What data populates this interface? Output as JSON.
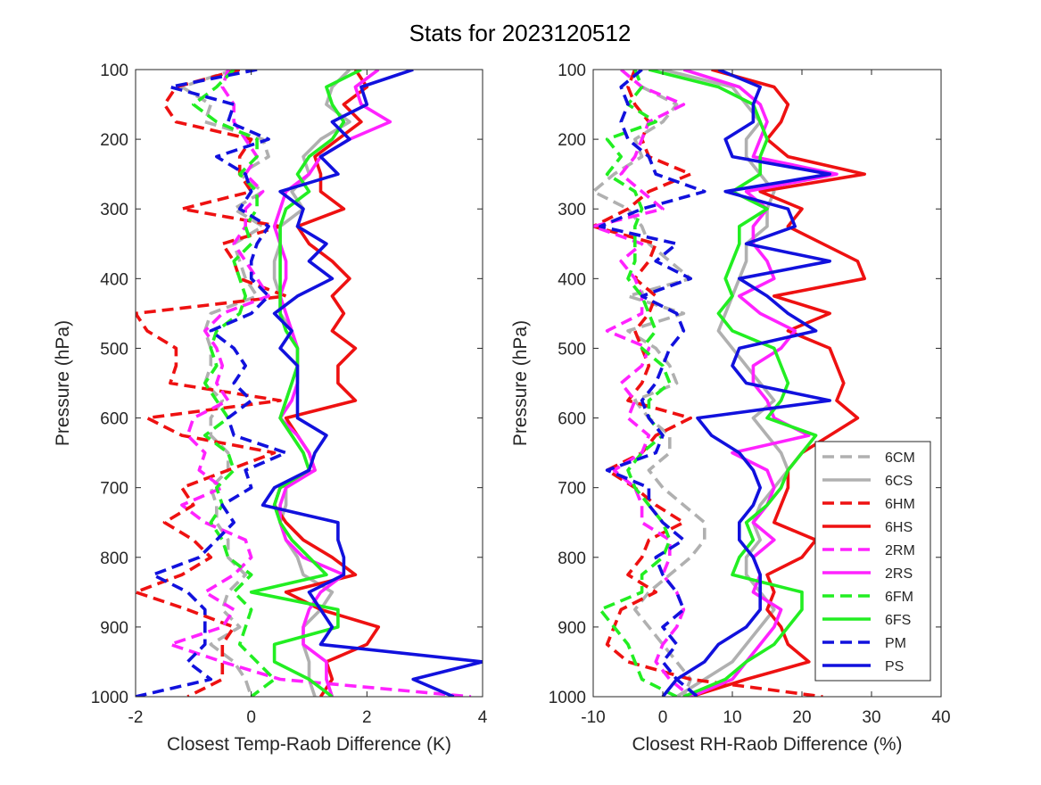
{
  "title": "Stats for 2023120512",
  "colors": {
    "6C": "#b0b0b0",
    "6H": "#ee1111",
    "2R": "#ff22ff",
    "6F": "#22ee22",
    "P": "#1111dd"
  },
  "legend": {
    "placement": "lower-right of right panel",
    "entries": [
      {
        "label": "6CM",
        "color_key": "6C",
        "style": "dashed"
      },
      {
        "label": "6CS",
        "color_key": "6C",
        "style": "solid"
      },
      {
        "label": "6HM",
        "color_key": "6H",
        "style": "dashed"
      },
      {
        "label": "6HS",
        "color_key": "6H",
        "style": "solid"
      },
      {
        "label": "2RM",
        "color_key": "2R",
        "style": "dashed"
      },
      {
        "label": "2RS",
        "color_key": "2R",
        "style": "solid"
      },
      {
        "label": "6FM",
        "color_key": "6F",
        "style": "dashed"
      },
      {
        "label": "6FS",
        "color_key": "6F",
        "style": "solid"
      },
      {
        "label": "PM",
        "color_key": "P",
        "style": "dashed"
      },
      {
        "label": "PS",
        "color_key": "P",
        "style": "solid"
      }
    ]
  },
  "chart_data": [
    {
      "type": "line",
      "xlabel": "Closest Temp-Raob Difference (K)",
      "ylabel": "Pressure (hPa)",
      "xlim": [
        -2,
        4
      ],
      "ylim": [
        1000,
        100
      ],
      "y_reversed": true,
      "xticks": [
        "-2",
        "0",
        "2",
        "4"
      ],
      "xtick_values": [
        -2,
        0,
        2,
        4
      ],
      "yticks": [
        "100",
        "200",
        "300",
        "400",
        "500",
        "600",
        "700",
        "800",
        "900",
        "1000"
      ],
      "ytick_values": [
        100,
        200,
        300,
        400,
        500,
        600,
        700,
        800,
        900,
        1000
      ],
      "grid": false,
      "pressure_levels": [
        100,
        125,
        150,
        175,
        200,
        225,
        250,
        275,
        300,
        325,
        350,
        375,
        400,
        425,
        450,
        475,
        500,
        525,
        550,
        575,
        600,
        625,
        650,
        675,
        700,
        725,
        750,
        775,
        800,
        825,
        850,
        875,
        900,
        925,
        950,
        975,
        1000
      ],
      "series": [
        {
          "name": "6CM",
          "values": [
            -0.3,
            -1.2,
            -0.7,
            -0.8,
            0.2,
            0.3,
            -0.2,
            0.2,
            -0.3,
            0.2,
            -0.3,
            -0.2,
            -0.1,
            0.1,
            -0.7,
            -0.8,
            -0.7,
            -0.7,
            -0.8,
            -0.5,
            -0.7,
            -0.7,
            -0.4,
            -0.4,
            -0.7,
            -0.6,
            -0.6,
            -0.4,
            -0.4,
            -0.1,
            -0.4,
            -0.5,
            -0.2,
            -0.7,
            -0.3,
            -0.1,
            0.0
          ]
        },
        {
          "name": "6CS",
          "values": [
            1.7,
            1.4,
            1.3,
            1.7,
            1.2,
            0.9,
            1.0,
            0.7,
            0.9,
            0.5,
            0.5,
            0.4,
            0.4,
            0.5,
            0.5,
            0.7,
            0.8,
            0.8,
            0.7,
            0.6,
            0.5,
            0.7,
            0.9,
            1.0,
            0.6,
            0.6,
            0.5,
            0.6,
            0.8,
            0.9,
            1.4,
            1.2,
            0.9,
            0.9,
            1.0,
            1.0,
            1.1
          ]
        },
        {
          "name": "6HM",
          "values": [
            -0.2,
            -1.3,
            -1.5,
            -1.3,
            0.0,
            -0.2,
            -0.2,
            0.0,
            -1.2,
            0.5,
            -0.5,
            -0.3,
            -0.2,
            0.6,
            -2.0,
            -1.8,
            -1.3,
            -1.3,
            -1.4,
            0.5,
            -1.8,
            -1.2,
            0.4,
            -0.4,
            -1.2,
            -1.0,
            -1.5,
            -1.0,
            -0.7,
            -1.2,
            -2.0,
            -1.1,
            -0.3,
            -0.5,
            -0.5,
            -0.5,
            -1.1
          ]
        },
        {
          "name": "6HS",
          "values": [
            1.8,
            2.0,
            1.6,
            1.9,
            1.5,
            1.1,
            1.2,
            1.2,
            1.6,
            0.8,
            1.0,
            1.4,
            1.7,
            1.4,
            1.6,
            1.4,
            1.8,
            1.5,
            1.5,
            1.8,
            0.6,
            0.8,
            1.0,
            1.1,
            0.5,
            0.4,
            0.6,
            0.9,
            1.4,
            1.8,
            0.6,
            1.2,
            2.2,
            2.0,
            1.3,
            1.4,
            1.2
          ]
        },
        {
          "name": "2RM",
          "values": [
            -0.4,
            -0.5,
            -0.3,
            -0.3,
            -0.1,
            0.1,
            -0.1,
            0.2,
            -0.1,
            -0.1,
            -0.3,
            -0.1,
            0.1,
            0.3,
            -0.5,
            -0.8,
            -0.6,
            -0.5,
            -0.6,
            -0.4,
            -1.0,
            -1.1,
            -0.8,
            -0.9,
            -0.5,
            -1.2,
            -0.8,
            -0.1,
            0.0,
            -0.3,
            -0.8,
            -0.3,
            -0.5,
            -1.4,
            -0.5,
            0.5,
            3.8
          ]
        },
        {
          "name": "2RS",
          "values": [
            2.2,
            1.8,
            1.9,
            2.4,
            1.7,
            1.2,
            1.0,
            0.6,
            0.5,
            0.4,
            0.5,
            0.6,
            0.6,
            0.5,
            0.6,
            0.7,
            0.8,
            0.8,
            0.8,
            0.7,
            0.5,
            0.8,
            1.0,
            1.1,
            0.6,
            0.5,
            0.5,
            0.6,
            0.9,
            1.6,
            1.2,
            1.0,
            0.9,
            0.9,
            1.3,
            1.3,
            1.4
          ]
        },
        {
          "name": "6FM",
          "values": [
            -0.3,
            -0.6,
            -1.0,
            -0.6,
            0.1,
            0.1,
            -0.2,
            0.1,
            0.1,
            -0.1,
            0.0,
            -0.3,
            -0.2,
            -0.1,
            -0.2,
            -0.6,
            -0.7,
            -0.6,
            -0.8,
            -0.6,
            -0.4,
            -0.8,
            -0.4,
            -0.3,
            -0.6,
            -0.5,
            -0.7,
            -0.5,
            -0.4,
            0.0,
            -0.3,
            0.0,
            -0.1,
            -0.2,
            0.1,
            0.4,
            0.0
          ]
        },
        {
          "name": "6FS",
          "values": [
            1.9,
            1.3,
            1.4,
            1.6,
            1.4,
            1.0,
            0.8,
            1.0,
            0.6,
            0.5,
            0.5,
            0.5,
            0.5,
            0.5,
            0.5,
            0.6,
            0.8,
            0.8,
            0.7,
            0.6,
            0.5,
            0.7,
            0.9,
            1.0,
            0.5,
            0.4,
            0.5,
            0.7,
            1.0,
            1.3,
            0.0,
            1.5,
            1.5,
            0.4,
            0.4,
            1.0,
            1.4
          ]
        },
        {
          "name": "PM",
          "values": [
            0.1,
            -1.4,
            -0.3,
            -0.4,
            0.3,
            -0.6,
            -0.1,
            0.0,
            -0.2,
            0.3,
            0.1,
            0.0,
            0.0,
            0.3,
            0.0,
            -0.7,
            -0.3,
            -0.1,
            -0.3,
            0.0,
            -0.4,
            -0.3,
            0.6,
            -0.1,
            0.0,
            -0.5,
            -0.3,
            -0.6,
            -0.9,
            -1.7,
            -1.1,
            -0.8,
            -0.8,
            -0.8,
            -1.1,
            -0.7,
            -2.0
          ]
        },
        {
          "name": "PS",
          "values": [
            2.8,
            1.9,
            2.0,
            1.4,
            1.7,
            1.2,
            1.5,
            0.5,
            0.9,
            0.8,
            1.3,
            1.0,
            1.4,
            0.8,
            0.4,
            0.7,
            0.5,
            0.8,
            0.8,
            0.8,
            0.8,
            1.3,
            1.1,
            1.0,
            0.4,
            0.2,
            1.5,
            1.5,
            1.6,
            1.6,
            1.0,
            1.2,
            1.4,
            1.2,
            4.0,
            2.8,
            3.5
          ]
        }
      ]
    },
    {
      "type": "line",
      "xlabel": "Closest RH-Raob Difference (%)",
      "ylabel": "Pressure (hPa)",
      "xlim": [
        -10,
        40
      ],
      "ylim": [
        1000,
        100
      ],
      "y_reversed": true,
      "xticks": [
        "-10",
        "0",
        "10",
        "20",
        "30",
        "40"
      ],
      "xtick_values": [
        -10,
        0,
        10,
        20,
        30,
        40
      ],
      "yticks": [
        "100",
        "200",
        "300",
        "400",
        "500",
        "600",
        "700",
        "800",
        "900",
        "1000"
      ],
      "ytick_values": [
        100,
        200,
        300,
        400,
        500,
        600,
        700,
        800,
        900,
        1000
      ],
      "grid": false,
      "pressure_levels": [
        100,
        125,
        150,
        175,
        200,
        225,
        250,
        275,
        300,
        325,
        350,
        375,
        400,
        425,
        450,
        475,
        500,
        525,
        550,
        575,
        600,
        625,
        650,
        675,
        700,
        725,
        750,
        775,
        800,
        825,
        850,
        875,
        900,
        925,
        950,
        975,
        1000
      ],
      "series": [
        {
          "name": "6CM",
          "values": [
            -4,
            -3,
            2,
            0,
            -4,
            -3,
            -7,
            -10,
            -5,
            -3,
            -2,
            1,
            4,
            -5,
            3,
            -5,
            -1,
            1,
            2,
            -4,
            -2,
            1,
            1,
            -2,
            0,
            3,
            6,
            6,
            4,
            1,
            -2,
            -4,
            -2,
            0,
            2,
            4,
            3
          ]
        },
        {
          "name": "6CS",
          "values": [
            0,
            10,
            12,
            14,
            12,
            12,
            14,
            16,
            15,
            15,
            12,
            12,
            11,
            10,
            9,
            8,
            10,
            12,
            14,
            16,
            13,
            15,
            17,
            18,
            16,
            14,
            13,
            14,
            12,
            12,
            14,
            16,
            14,
            12,
            10,
            6,
            2
          ]
        },
        {
          "name": "6HM",
          "values": [
            -4,
            -5,
            -4,
            -2,
            -3,
            -2,
            4,
            -2,
            -5,
            -10,
            -1,
            -2,
            -4,
            -1,
            -2,
            -4,
            -3,
            -2,
            -3,
            -5,
            4,
            -1,
            -3,
            -8,
            -4,
            -1,
            3,
            -2,
            -3,
            -5,
            -1,
            -6,
            -7,
            -8,
            -5,
            4,
            23
          ]
        },
        {
          "name": "6HS",
          "values": [
            7,
            16,
            18,
            17,
            15,
            18,
            29,
            14,
            20,
            18,
            23,
            28,
            29,
            16,
            24,
            18,
            24,
            25,
            26,
            25,
            28,
            24,
            20,
            18,
            18,
            17,
            16,
            22,
            20,
            15,
            16,
            15,
            17,
            18,
            21,
            12,
            4
          ]
        },
        {
          "name": "2RM",
          "values": [
            -6,
            -3,
            3,
            -2,
            -3,
            -4,
            -6,
            -3,
            0,
            -10,
            -3,
            -6,
            -4,
            -3,
            -3,
            -8,
            -2,
            -3,
            -6,
            -4,
            -5,
            -2,
            -3,
            -7,
            -4,
            -3,
            -3,
            1,
            1,
            0,
            2,
            3,
            2,
            0,
            -1,
            1,
            4
          ]
        },
        {
          "name": "2RS",
          "values": [
            3,
            11,
            14,
            15,
            14,
            13,
            25,
            12,
            15,
            13,
            13,
            15,
            16,
            11,
            14,
            19,
            17,
            13,
            13,
            15,
            16,
            21,
            10,
            15,
            16,
            15,
            13,
            16,
            13,
            14,
            13,
            17,
            16,
            14,
            12,
            10,
            4
          ]
        },
        {
          "name": "6FM",
          "values": [
            -4,
            -3,
            -5,
            -1,
            -8,
            -6,
            -8,
            -4,
            -3,
            -4,
            -4,
            -4,
            -5,
            -3,
            -2,
            -1,
            -3,
            0,
            1,
            -2,
            -2,
            0,
            -3,
            -5,
            -4,
            -2,
            0,
            1,
            0,
            -3,
            -3,
            -9,
            -7,
            -5,
            -4,
            -3,
            2
          ]
        },
        {
          "name": "6FS",
          "values": [
            -2,
            8,
            13,
            14,
            15,
            14,
            14,
            10,
            15,
            11,
            11,
            10,
            9,
            10,
            8,
            10,
            16,
            17,
            18,
            17,
            15,
            22,
            20,
            18,
            17,
            15,
            12,
            13,
            11,
            10,
            20,
            20,
            18,
            16,
            12,
            9,
            3
          ]
        },
        {
          "name": "PM",
          "values": [
            -3,
            -6,
            -5,
            -6,
            -5,
            -2,
            -1,
            6,
            -3,
            -9,
            2,
            -1,
            4,
            -3,
            2,
            3,
            1,
            0,
            -1,
            -3,
            -2,
            0,
            -1,
            -8,
            -2,
            -2,
            0,
            3,
            -1,
            0,
            2,
            3,
            0,
            2,
            0,
            2,
            5
          ]
        },
        {
          "name": "PS",
          "values": [
            8,
            14,
            13,
            13,
            9,
            10,
            24,
            9,
            18,
            19,
            12,
            24,
            11,
            15,
            18,
            22,
            11,
            10,
            12,
            24,
            5,
            7,
            11,
            13,
            14,
            13,
            11,
            11,
            13,
            14,
            14,
            14,
            12,
            8,
            6,
            2,
            0
          ]
        }
      ]
    }
  ]
}
